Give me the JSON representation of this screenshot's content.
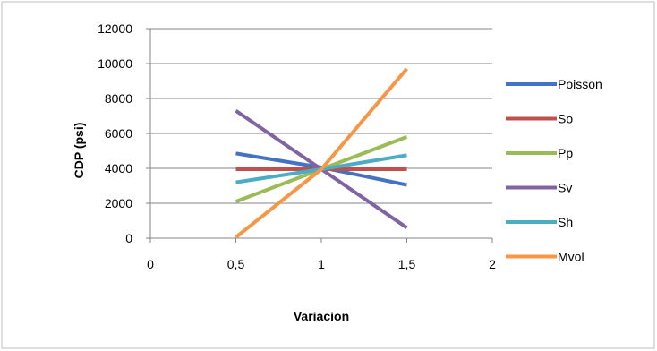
{
  "chart_data": {
    "type": "line",
    "title": "",
    "xlabel": "Variacion",
    "ylabel": "CDP (psi)",
    "xlim": [
      0,
      2
    ],
    "ylim": [
      0,
      12000
    ],
    "x_ticks": [
      "0",
      "0,5",
      "1",
      "1,5",
      "2"
    ],
    "y_ticks": [
      "0",
      "2000",
      "4000",
      "6000",
      "8000",
      "10000",
      "12000"
    ],
    "grid": "horizontal",
    "legend_position": "right",
    "x": [
      0.5,
      1,
      1.5
    ],
    "series": [
      {
        "name": "Poisson",
        "color": "#4472C4",
        "values": [
          4850,
          4050,
          3050
        ]
      },
      {
        "name": "So",
        "color": "#C0504D",
        "values": [
          3950,
          3950,
          3950
        ]
      },
      {
        "name": "Pp",
        "color": "#9BBB59",
        "values": [
          2100,
          3950,
          5800
        ]
      },
      {
        "name": "Sv",
        "color": "#8064A2",
        "values": [
          7300,
          3950,
          600
        ]
      },
      {
        "name": "Sh",
        "color": "#4BACC6",
        "values": [
          3200,
          3950,
          4750
        ]
      },
      {
        "name": "Mvol",
        "color": "#F79646",
        "values": [
          50,
          3950,
          9700
        ]
      }
    ]
  }
}
